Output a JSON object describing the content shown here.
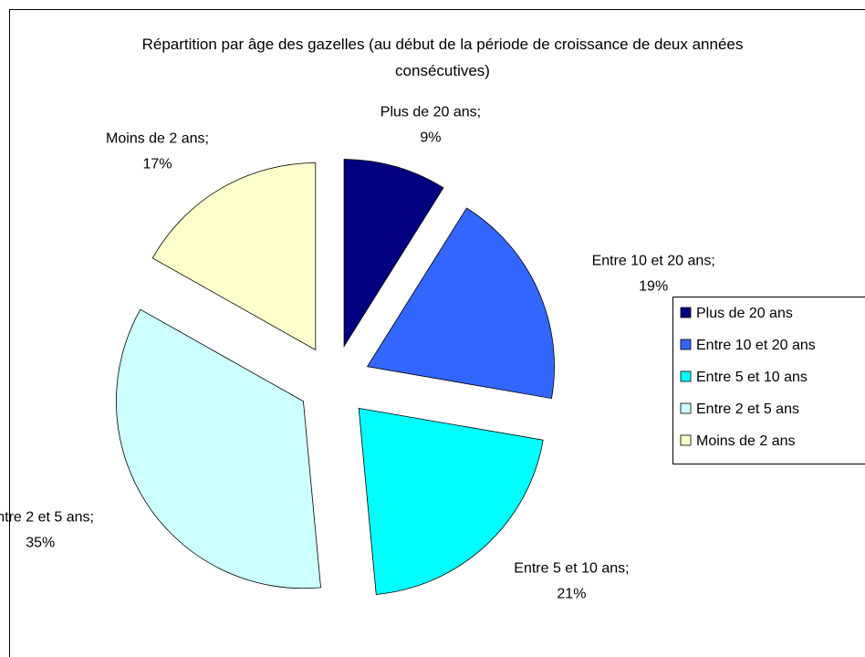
{
  "chart_data": {
    "type": "pie",
    "title": "Répartition par âge des gazelles (au début de la période de croissance de deux années consécutives)",
    "categories": [
      "Plus de 20 ans",
      "Entre 10 et 20 ans",
      "Entre 5 et 10 ans",
      "Entre 2 et 5 ans",
      "Moins de 2 ans"
    ],
    "values": [
      9,
      19,
      21,
      35,
      17
    ],
    "value_labels": [
      "9%",
      "19%",
      "21%",
      "35%",
      "17%"
    ],
    "label_separator": ";",
    "colors": [
      "#000080",
      "#3366ff",
      "#00ffff",
      "#ccffff",
      "#ffffcc"
    ],
    "legend": "right"
  }
}
